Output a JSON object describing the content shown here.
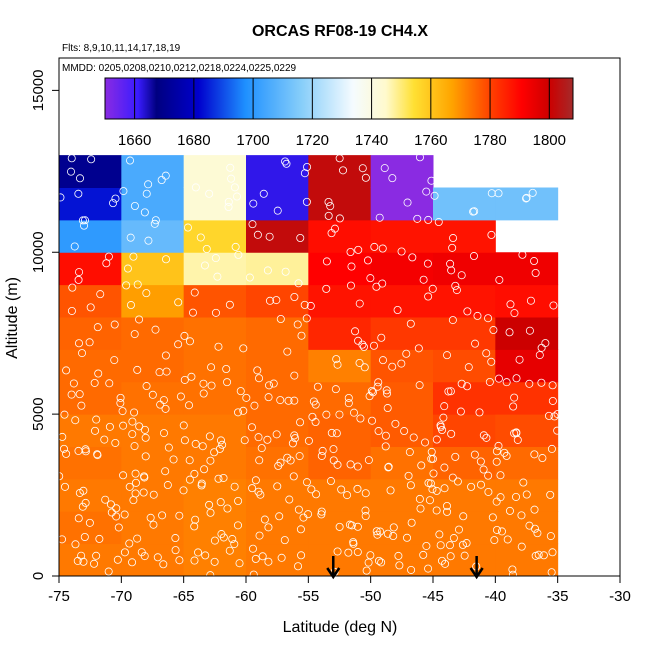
{
  "chart_data": {
    "type": "heatmap",
    "title": "ORCAS RF08-19 CH4.X",
    "subtitle_flights": "Flts: 8,9,10,11,14,17,18,19",
    "subtitle_dates": "MMDD: 0205,0208,0210,0212,0218,0224,0225,0229",
    "xlabel": "Latitude (deg N)",
    "ylabel": "Altitude (m)",
    "xlim": [
      -75,
      -30
    ],
    "ylim": [
      0,
      16000
    ],
    "x_ticks": [
      -75,
      -70,
      -65,
      -60,
      -55,
      -50,
      -45,
      -40,
      -35,
      -30
    ],
    "y_ticks": [
      0,
      5000,
      10000,
      15000
    ],
    "cell_width_deg": 5,
    "cell_height_m": 1000,
    "colorbar": {
      "range": [
        1650,
        1808
      ],
      "ticks": [
        1660,
        1680,
        1700,
        1720,
        1740,
        1760,
        1780,
        1800
      ]
    },
    "arrows_at_lat": [
      -53,
      -41.5
    ],
    "columns": [
      {
        "x0": -75,
        "values": [
          1772,
          1773,
          1772,
          1773,
          1772,
          1774,
          1774,
          1775,
          1777,
          1788,
          1700,
          1684,
          1670
        ]
      },
      {
        "x0": -70,
        "values": [
          1772,
          1772,
          1772,
          1772,
          1772,
          1773,
          1774,
          1774,
          1767,
          1760,
          1710,
          1705,
          1705
        ]
      },
      {
        "x0": -65,
        "values": [
          1771,
          1771,
          1771,
          1772,
          1772,
          1773,
          1773,
          1773,
          1777,
          1747,
          1756,
          1743,
          1743
        ]
      },
      {
        "x0": -60,
        "values": [
          1772,
          1772,
          1772,
          1773,
          1774,
          1774,
          1774,
          1774,
          1779,
          1748,
          1802,
          1662,
          1662
        ]
      },
      {
        "x0": -55,
        "values": [
          1772,
          1772,
          1772,
          1775,
          1775,
          1774,
          1771,
          1784,
          1787,
          1790,
          1788,
          1802,
          1802
        ]
      },
      {
        "x0": -50,
        "values": [
          1772,
          1772,
          1772,
          1773,
          1776,
          1776,
          1777,
          1781,
          1787,
          1792,
          1787,
          1650,
          1650
        ]
      },
      {
        "x0": -45,
        "values": [
          1772,
          1772,
          1772,
          1775,
          1779,
          1782,
          1778,
          1781,
          1787,
          1793,
          1787,
          1712,
          null
        ]
      },
      {
        "x0": -40,
        "values": [
          1772,
          1772,
          1772,
          1774,
          1778,
          1782,
          1795,
          1800,
          1788,
          1793,
          null,
          1712,
          null
        ]
      }
    ]
  }
}
